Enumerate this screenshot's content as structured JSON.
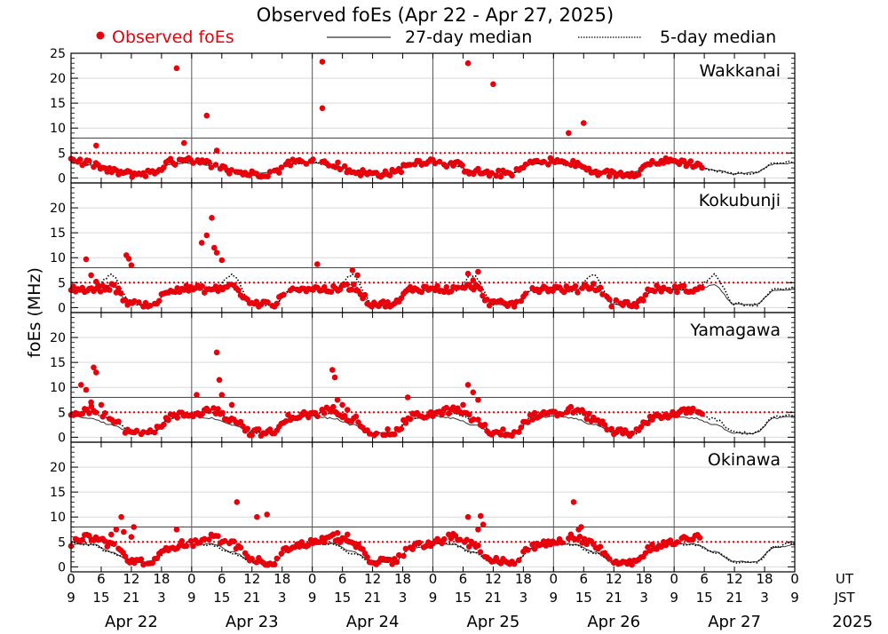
{
  "chart_data": {
    "type": "scatter",
    "title": "Observed foEs (Apr 22 - Apr 27, 2025)",
    "ylabel": "foEs (MHz)",
    "xlabel": "",
    "ylim": [
      -1,
      25
    ],
    "legend": {
      "placement": "top",
      "observed": "Observed foEs",
      "median27": "27-day median",
      "median5": "5-day median"
    },
    "colors": {
      "observed": "#e8000b",
      "median27": "#333333",
      "median5": "#000000",
      "threshold": "#e8000b",
      "divider": "#555555",
      "grid": "#d9d9d9"
    },
    "yticks_first_panel": [
      0,
      5,
      10,
      15,
      20,
      25
    ],
    "yticks_other_panels": [
      0,
      5,
      10,
      15,
      20
    ],
    "thresholds_mhz": {
      "solid": 8,
      "dotted": 5
    },
    "x_unit": "hours since Apr 22 00 UT",
    "x_range_hours": [
      0,
      144
    ],
    "x_ticks_hours": [
      0,
      6,
      12,
      18,
      24,
      30,
      36,
      42,
      48,
      54,
      60,
      66,
      72,
      78,
      84,
      90,
      96,
      102,
      108,
      114,
      120,
      126,
      132,
      138,
      144
    ],
    "ut_tick_labels": [
      "0",
      "6",
      "12",
      "18",
      "0",
      "6",
      "12",
      "18",
      "0",
      "6",
      "12",
      "18",
      "0",
      "6",
      "12",
      "18",
      "0",
      "6",
      "12",
      "18",
      "0",
      "6",
      "12",
      "18",
      "0"
    ],
    "jst_tick_labels": [
      "9",
      "15",
      "21",
      "3",
      "9",
      "15",
      "21",
      "3",
      "9",
      "15",
      "21",
      "3",
      "9",
      "15",
      "21",
      "3",
      "9",
      "15",
      "21",
      "3",
      "9",
      "15",
      "21",
      "3",
      "9"
    ],
    "ut_label": "UT",
    "jst_label": "JST",
    "day_labels": [
      "Apr 22",
      "Apr 23",
      "Apr 24",
      "Apr 25",
      "Apr 26",
      "Apr 27"
    ],
    "year_label": "2025",
    "observed_end_hour": 126,
    "panels": [
      {
        "station": "Wakkanai",
        "median_day_profile": [
          3.0,
          2.5,
          1.5,
          0.9,
          1.1,
          2.8
        ],
        "median5_day_profile": [
          3.2,
          2.6,
          1.4,
          0.8,
          1.0,
          3.0
        ],
        "obs_base_profile": [
          3.4,
          2.8,
          1.3,
          0.8,
          1.0,
          3.2
        ],
        "outliers": [
          [
            5,
            6.5
          ],
          [
            21,
            22
          ],
          [
            22.5,
            7
          ],
          [
            27,
            12.5
          ],
          [
            29,
            5.5
          ],
          [
            50,
            23.3
          ],
          [
            50,
            14
          ],
          [
            79,
            23
          ],
          [
            84,
            18.8
          ],
          [
            99,
            9
          ],
          [
            102,
            11
          ]
        ]
      },
      {
        "station": "Kokubunji",
        "median_day_profile": [
          3.6,
          3.5,
          4.5,
          0.7,
          0.5,
          3.4
        ],
        "median5_day_profile": [
          3.8,
          3.2,
          6.5,
          0.8,
          0.5,
          3.6
        ],
        "obs_base_profile": [
          3.8,
          3.6,
          4.2,
          0.8,
          0.6,
          3.8
        ],
        "outliers": [
          [
            3,
            9.7
          ],
          [
            4,
            6.5
          ],
          [
            5,
            5.2
          ],
          [
            11,
            10.5
          ],
          [
            11.5,
            9.8
          ],
          [
            12,
            8.5
          ],
          [
            26,
            13
          ],
          [
            27,
            14.5
          ],
          [
            28,
            18
          ],
          [
            28.5,
            12
          ],
          [
            29,
            11
          ],
          [
            30,
            9.5
          ],
          [
            49,
            8.7
          ],
          [
            56,
            7.5
          ],
          [
            57,
            6.5
          ],
          [
            79,
            6.8
          ],
          [
            80,
            5.5
          ],
          [
            81,
            7.2
          ]
        ]
      },
      {
        "station": "Yamagawa",
        "median_day_profile": [
          4.2,
          3.8,
          2.5,
          0.9,
          0.8,
          3.8
        ],
        "median5_day_profile": [
          4.5,
          4.8,
          3.6,
          1.0,
          0.8,
          4.0
        ],
        "obs_base_profile": [
          4.6,
          5.5,
          3.8,
          1.0,
          0.9,
          4.2
        ],
        "outliers": [
          [
            2,
            10.5
          ],
          [
            3,
            9.5
          ],
          [
            4,
            7
          ],
          [
            4.5,
            14
          ],
          [
            5,
            13
          ],
          [
            6,
            6.5
          ],
          [
            25,
            8.5
          ],
          [
            29,
            17
          ],
          [
            29.5,
            11.5
          ],
          [
            30,
            8.5
          ],
          [
            32,
            6.5
          ],
          [
            52,
            13.5
          ],
          [
            52.5,
            12
          ],
          [
            53,
            7.5
          ],
          [
            54,
            6.5
          ],
          [
            55,
            5.5
          ],
          [
            67,
            8
          ],
          [
            79,
            10.5
          ],
          [
            80,
            9
          ],
          [
            81,
            7.5
          ],
          [
            78,
            6.5
          ]
        ]
      },
      {
        "station": "Okinawa",
        "median_day_profile": [
          4.5,
          4.6,
          3.0,
          1.1,
          0.9,
          3.8
        ],
        "median5_day_profile": [
          4.8,
          4.5,
          2.8,
          1.0,
          0.8,
          4.0
        ],
        "obs_base_profile": [
          4.8,
          6.0,
          4.6,
          1.2,
          1.0,
          4.2
        ],
        "outliers": [
          [
            8,
            6.5
          ],
          [
            9,
            7.5
          ],
          [
            10,
            10
          ],
          [
            10.5,
            7
          ],
          [
            12,
            6
          ],
          [
            12.5,
            8
          ],
          [
            21,
            7.5
          ],
          [
            33,
            13
          ],
          [
            37,
            10
          ],
          [
            39,
            10.5
          ],
          [
            53,
            6.8
          ],
          [
            55,
            6.5
          ],
          [
            79,
            10
          ],
          [
            81,
            7.5
          ],
          [
            81.5,
            10.2
          ],
          [
            82,
            8.5
          ],
          [
            100,
            13
          ],
          [
            101,
            7.5
          ],
          [
            101.5,
            8
          ]
        ]
      }
    ]
  }
}
